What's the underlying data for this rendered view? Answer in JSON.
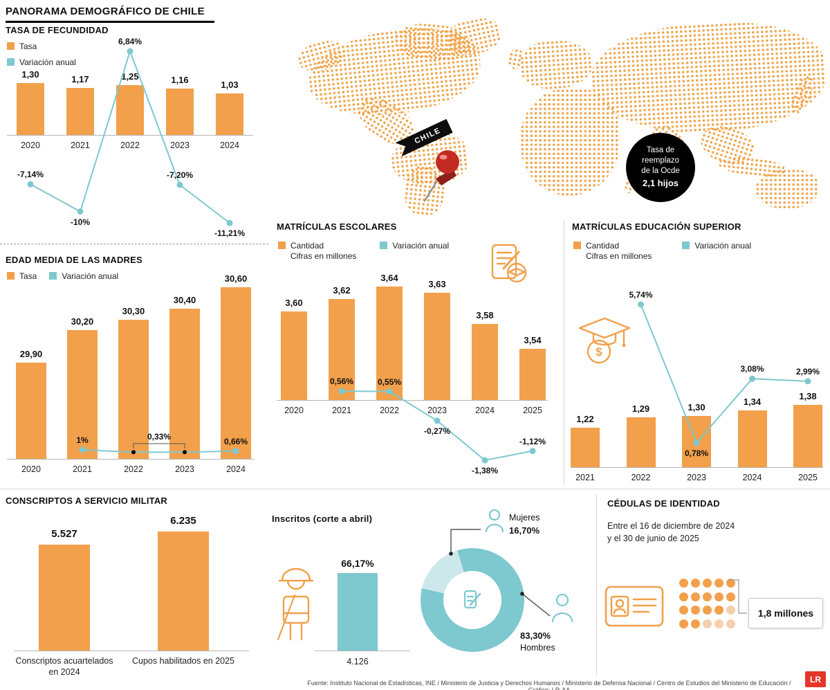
{
  "title": "PANORAMA DEMOGRÁFICO DE CHILE",
  "colors": {
    "orange": "#F2A04B",
    "orange_map": "#F0A64D",
    "teal": "#7EC8CF",
    "teal_light": "#CDE8EB",
    "dot_pale": "#F6CFAF",
    "badge_bg": "#000000",
    "logo_red": "#E5362A"
  },
  "map": {
    "chile_label": "CHILE",
    "badge": {
      "line1": "Tasa de",
      "line2": "reemplazo",
      "line3": "de la Ocde",
      "bold": "2,1 hijos"
    }
  },
  "sections": {
    "fecundidad": {
      "title": "TASA DE FECUNDIDAD",
      "legend_bar": "Tasa",
      "legend_line": "Variación anual"
    },
    "madres": {
      "title": "EDAD MEDIA DE LAS MADRES",
      "legend_bar": "Tasa",
      "legend_line": "Variación anual"
    },
    "escolares": {
      "title": "MATRÍCULAS ESCOLARES",
      "legend_bar_1": "Cantidad",
      "legend_bar_2": "Cifras en millones",
      "legend_line": "Variación anual"
    },
    "superior": {
      "title": "MATRÍCULAS EDUCACIÓN SUPERIOR",
      "legend_bar_1": "Cantidad",
      "legend_bar_2": "Cifras en millones",
      "legend_line": "Variación anual"
    },
    "conscriptos": {
      "title": "CONSCRIPTOS A SERVICIO MILITAR"
    },
    "inscritos": {
      "title": "Inscritos (corte a abril)"
    },
    "cedulas": {
      "title": "CÉDULAS DE IDENTIDAD",
      "period_1": "Entre el 16 de diciembre de 2024",
      "period_2": "y el 30 de junio de 2025",
      "value": "1,8 millones",
      "dots_rows": 4,
      "dots_cols": 5,
      "pale_dots": [
        14,
        17,
        18,
        19
      ]
    }
  },
  "footer": {
    "source": "Fuente: Instituto Nacional de Estadísticas, INE / Ministerio de Justicia y Derechos Humanos / Ministerio de Defensa Nacional / Centro de Estudios del Ministerio de Educación / Gráfico: LR-AA",
    "logo": "LR"
  },
  "chart_data": [
    {
      "id": "fecundidad",
      "type": "bar+line",
      "title": "TASA DE FECUNDIDAD",
      "categories": [
        "2020",
        "2021",
        "2022",
        "2023",
        "2024"
      ],
      "series": [
        {
          "name": "Tasa",
          "type": "bar",
          "values": [
            1.3,
            1.17,
            1.25,
            1.16,
            1.03
          ],
          "labels": [
            "1,30",
            "1,17",
            "1,25",
            "1,16",
            "1,03"
          ]
        },
        {
          "name": "Variación anual",
          "type": "line",
          "values": [
            -7.14,
            -10,
            6.84,
            -7.2,
            -11.21
          ],
          "labels": [
            "-7,14%",
            "-10%",
            "6,84%",
            "-7,20%",
            "-11,21%"
          ],
          "label_pos": [
            "above",
            "below",
            "above",
            "above",
            "below"
          ]
        }
      ],
      "bar_ylim": [
        0,
        1.45
      ],
      "line_ylim": [
        -12.5,
        7.5
      ],
      "legend_position": "top-left",
      "grid": false
    },
    {
      "id": "madres",
      "type": "bar+line",
      "title": "EDAD MEDIA DE LAS MADRES",
      "categories": [
        "2020",
        "2021",
        "2022",
        "2023",
        "2024"
      ],
      "series": [
        {
          "name": "Tasa",
          "type": "bar",
          "values": [
            29.9,
            30.2,
            30.3,
            30.4,
            30.6
          ],
          "labels": [
            "29,90",
            "30,20",
            "30,30",
            "30,40",
            "30,60"
          ]
        },
        {
          "name": "Variación anual",
          "type": "line",
          "values": [
            null,
            1,
            0.33,
            0.33,
            0.66
          ],
          "labels": [
            null,
            "1%",
            null,
            null,
            "0,66%"
          ],
          "label_pos": [
            null,
            "above",
            null,
            null,
            "above"
          ],
          "point_colors": [
            null,
            null,
            "#000000",
            "#000000",
            null
          ],
          "bracket": {
            "from": 2,
            "to": 3,
            "label": "0,33%"
          }
        }
      ],
      "bar_ylim": [
        29,
        30.7
      ],
      "grid": false
    },
    {
      "id": "escolares",
      "type": "bar+line",
      "title": "MATRÍCULAS ESCOLARES",
      "units": "Cifras en millones",
      "categories": [
        "2020",
        "2021",
        "2022",
        "2023",
        "2024",
        "2025"
      ],
      "series": [
        {
          "name": "Cantidad",
          "type": "bar",
          "values": [
            3.6,
            3.62,
            3.64,
            3.63,
            3.58,
            3.54
          ],
          "labels": [
            "3,60",
            "3,62",
            "3,64",
            "3,63",
            "3,58",
            "3,54"
          ]
        },
        {
          "name": "Variación anual",
          "type": "line",
          "values": [
            null,
            0.56,
            0.55,
            -0.27,
            -1.38,
            -1.12
          ],
          "labels": [
            null,
            "0,56%",
            "0,55%",
            "-0,27%",
            "-1,38%",
            "-1,12%"
          ],
          "label_pos": [
            null,
            "above",
            "above",
            "below",
            "below",
            "above"
          ]
        }
      ],
      "bar_ylim": [
        3.458,
        3.66
      ],
      "grid": false
    },
    {
      "id": "superior",
      "type": "bar+line",
      "title": "MATRÍCULAS EDUCACIÓN SUPERIOR",
      "units": "Cifras en millones",
      "categories": [
        "2021",
        "2022",
        "2023",
        "2024",
        "2025"
      ],
      "series": [
        {
          "name": "Cantidad",
          "type": "bar",
          "values": [
            1.22,
            1.29,
            1.3,
            1.34,
            1.38
          ],
          "labels": [
            "1,22",
            "1,29",
            "1,30",
            "1,34",
            "1,38"
          ]
        },
        {
          "name": "Variación anual",
          "type": "line",
          "values": [
            null,
            5.74,
            0.78,
            3.08,
            2.99
          ],
          "labels": [
            null,
            "5,74%",
            "0,78%",
            "3,08%",
            "2,99%"
          ],
          "label_pos": [
            null,
            "above",
            "below",
            "above",
            "above"
          ]
        }
      ],
      "bar_ylim": [
        0.94,
        1.45
      ],
      "grid": false
    },
    {
      "id": "conscriptos",
      "type": "bar",
      "title": "CONSCRIPTOS A SERVICIO MILITAR",
      "categories": [
        "Conscriptos acuartelados en 2024",
        "Cupos habilitados en 2025"
      ],
      "values": [
        5527,
        6235
      ],
      "labels": [
        "5.527",
        "6.235"
      ]
    },
    {
      "id": "inscritos",
      "type": "bar",
      "title": "Inscritos (corte a abril)",
      "categories": [
        "4.126"
      ],
      "values": [
        66.17
      ],
      "labels": [
        "66,17%"
      ]
    },
    {
      "id": "inscritos-genero",
      "type": "pie",
      "slices": [
        {
          "label": "Hombres",
          "value": 83.3,
          "value_label": "83,30%"
        },
        {
          "label": "Mujeres",
          "value": 16.7,
          "value_label": "16,70%"
        }
      ]
    },
    {
      "id": "cedulas",
      "type": "pictogram",
      "title": "CÉDULAS DE IDENTIDAD",
      "period": "Entre el 16 de diciembre de 2024 y el 30 de junio de 2025",
      "value_label": "1,8 millones"
    }
  ]
}
